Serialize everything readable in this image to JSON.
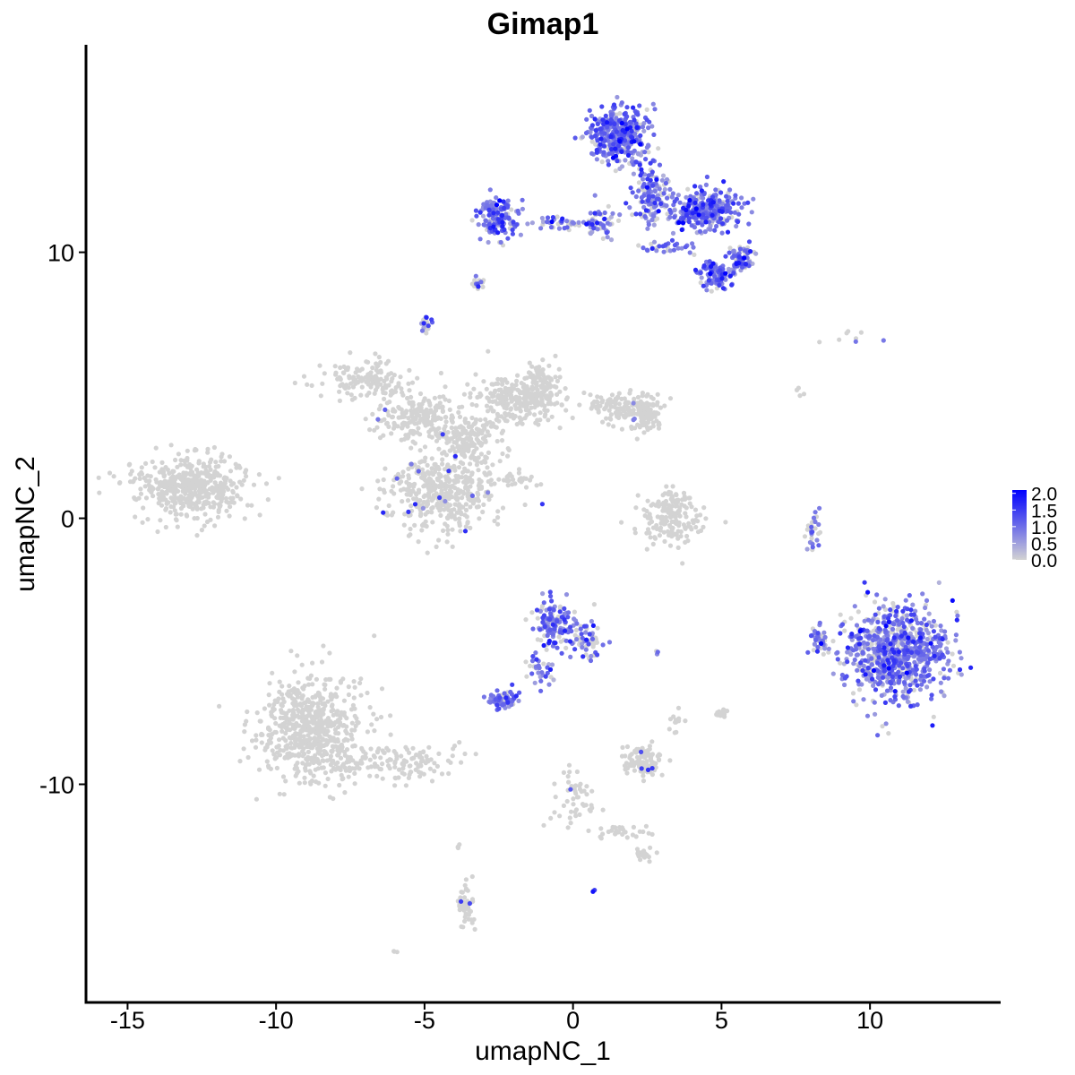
{
  "chart_data": {
    "type": "scatter",
    "title": "Gimap1",
    "xlabel": "umapNC_1",
    "ylabel": "umapNC_2",
    "xlim": [
      -16.4,
      14.4
    ],
    "ylim": [
      -18.2,
      17.8
    ],
    "xticks": [
      -15,
      -10,
      -5,
      0,
      5,
      10
    ],
    "xtick_labels": [
      "-15",
      "-10",
      "-5",
      "0",
      "5",
      "10"
    ],
    "yticks": [
      -10,
      0,
      10
    ],
    "ytick_labels": [
      "-10",
      "0",
      "10"
    ],
    "grid": false,
    "legend": {
      "position": "right",
      "type": "colorbar",
      "range": [
        0,
        2.1
      ],
      "ticks": [
        2.0,
        1.5,
        1.0,
        0.5,
        0.0
      ],
      "tick_labels": [
        "2.0",
        "1.5",
        "1.0",
        "0.5",
        "0.0"
      ],
      "low_color": "#d3d3d3",
      "high_color": "#0000ff"
    },
    "clusters": [
      {
        "cx": -13.0,
        "cy": 1.2,
        "sx": 1.3,
        "sy": 0.75,
        "n": 480,
        "expr": 0
      },
      {
        "cx": -8.8,
        "cy": -7.9,
        "sx": 1.2,
        "sy": 1.3,
        "n": 620,
        "expr": 0
      },
      {
        "cx": -6.0,
        "cy": -9.2,
        "sx": 1.5,
        "sy": 0.55,
        "n": 140,
        "expr": 0
      },
      {
        "cx": -7.0,
        "cy": 5.2,
        "sx": 1.0,
        "sy": 0.5,
        "n": 140,
        "expr": 0
      },
      {
        "cx": -5.2,
        "cy": 3.8,
        "sx": 0.9,
        "sy": 0.6,
        "n": 180,
        "expr": 0.03
      },
      {
        "cx": -4.4,
        "cy": 1.0,
        "sx": 1.2,
        "sy": 1.0,
        "n": 440,
        "expr": 0.03
      },
      {
        "cx": -3.6,
        "cy": 3.0,
        "sx": 0.7,
        "sy": 0.6,
        "n": 160,
        "expr": 0
      },
      {
        "cx": -2.0,
        "cy": 4.4,
        "sx": 0.9,
        "sy": 0.7,
        "n": 210,
        "expr": 0
      },
      {
        "cx": -1.0,
        "cy": 5.0,
        "sx": 0.5,
        "sy": 0.7,
        "n": 120,
        "expr": 0
      },
      {
        "cx": 1.6,
        "cy": 4.2,
        "sx": 0.9,
        "sy": 0.35,
        "n": 130,
        "expr": 0
      },
      {
        "cx": 2.4,
        "cy": 3.9,
        "sx": 0.4,
        "sy": 0.4,
        "n": 90,
        "expr": 0.03
      },
      {
        "cx": -1.9,
        "cy": 1.4,
        "sx": 0.55,
        "sy": 0.25,
        "n": 30,
        "expr": 0
      },
      {
        "cx": 3.2,
        "cy": -0.1,
        "sx": 0.8,
        "sy": 0.6,
        "n": 140,
        "expr": 0
      },
      {
        "cx": 3.3,
        "cy": 0.7,
        "sx": 0.25,
        "sy": 0.4,
        "n": 30,
        "expr": 0
      },
      {
        "cx": -4.9,
        "cy": 7.3,
        "sx": 0.12,
        "sy": 0.15,
        "n": 25,
        "expr": 0.45
      },
      {
        "cx": -3.2,
        "cy": 8.8,
        "sx": 0.15,
        "sy": 0.2,
        "n": 14,
        "expr": 0.5
      },
      {
        "cx": -2.6,
        "cy": 11.3,
        "sx": 0.45,
        "sy": 0.55,
        "n": 150,
        "expr": 0.85
      },
      {
        "cx": -0.5,
        "cy": 11.1,
        "sx": 0.7,
        "sy": 0.15,
        "n": 40,
        "expr": 0.75
      },
      {
        "cx": 0.9,
        "cy": 11.2,
        "sx": 0.4,
        "sy": 0.4,
        "n": 50,
        "expr": 0.75
      },
      {
        "cx": 1.5,
        "cy": 14.4,
        "sx": 0.65,
        "sy": 0.65,
        "n": 380,
        "expr": 0.85
      },
      {
        "cx": 2.6,
        "cy": 12.3,
        "sx": 0.45,
        "sy": 0.8,
        "n": 130,
        "expr": 0.8
      },
      {
        "cx": 4.4,
        "cy": 11.6,
        "sx": 0.85,
        "sy": 0.55,
        "n": 310,
        "expr": 0.85
      },
      {
        "cx": 4.8,
        "cy": 9.2,
        "sx": 0.4,
        "sy": 0.35,
        "n": 120,
        "expr": 0.85
      },
      {
        "cx": 5.7,
        "cy": 9.8,
        "sx": 0.3,
        "sy": 0.3,
        "n": 70,
        "expr": 0.8
      },
      {
        "cx": 3.2,
        "cy": 10.2,
        "sx": 0.6,
        "sy": 0.15,
        "n": 30,
        "expr": 0.75
      },
      {
        "cx": 10.9,
        "cy": -5.1,
        "sx": 1.1,
        "sy": 1.2,
        "n": 760,
        "expr": 0.8
      },
      {
        "cx": 8.3,
        "cy": -4.6,
        "sx": 0.2,
        "sy": 0.35,
        "n": 40,
        "expr": 0.7
      },
      {
        "cx": 8.1,
        "cy": -0.4,
        "sx": 0.15,
        "sy": 0.45,
        "n": 30,
        "expr": 0.6
      },
      {
        "cx": -0.6,
        "cy": -4.0,
        "sx": 0.45,
        "sy": 0.6,
        "n": 150,
        "expr": 0.75
      },
      {
        "cx": 0.5,
        "cy": -4.6,
        "sx": 0.35,
        "sy": 0.5,
        "n": 50,
        "expr": 0.4
      },
      {
        "cx": -1.1,
        "cy": -5.8,
        "sx": 0.3,
        "sy": 0.5,
        "n": 30,
        "expr": 0.75
      },
      {
        "cx": -2.4,
        "cy": -6.8,
        "sx": 0.35,
        "sy": 0.25,
        "n": 60,
        "expr": 0.8
      },
      {
        "cx": 2.4,
        "cy": -9.1,
        "sx": 0.5,
        "sy": 0.35,
        "n": 110,
        "expr": 0.04
      },
      {
        "cx": 0.0,
        "cy": -10.6,
        "sx": 0.5,
        "sy": 0.8,
        "n": 50,
        "expr": 0.02
      },
      {
        "cx": 1.5,
        "cy": -11.8,
        "sx": 0.6,
        "sy": 0.2,
        "n": 30,
        "expr": 0
      },
      {
        "cx": 2.4,
        "cy": -12.6,
        "sx": 0.25,
        "sy": 0.15,
        "n": 25,
        "expr": 0
      },
      {
        "cx": -3.6,
        "cy": -14.6,
        "sx": 0.18,
        "sy": 0.6,
        "n": 55,
        "expr": 0.02
      },
      {
        "cx": 5.0,
        "cy": -7.3,
        "sx": 0.15,
        "sy": 0.12,
        "n": 20,
        "expr": 0
      },
      {
        "cx": 3.4,
        "cy": -7.7,
        "sx": 0.2,
        "sy": 0.25,
        "n": 12,
        "expr": 0
      },
      {
        "cx": 9.3,
        "cy": 6.8,
        "sx": 0.5,
        "sy": 0.2,
        "n": 8,
        "expr": 0.3
      },
      {
        "cx": 7.6,
        "cy": 4.7,
        "sx": 0.1,
        "sy": 0.15,
        "n": 4,
        "expr": 0
      },
      {
        "cx": 2.8,
        "cy": -5.0,
        "sx": 0.05,
        "sy": 0.05,
        "n": 3,
        "expr": 0.8
      },
      {
        "cx": 0.7,
        "cy": -14.0,
        "sx": 0.05,
        "sy": 0.05,
        "n": 3,
        "expr": 0.6
      },
      {
        "cx": -6.0,
        "cy": -16.3,
        "sx": 0.05,
        "sy": 0.05,
        "n": 3,
        "expr": 0
      },
      {
        "cx": -3.9,
        "cy": -12.3,
        "sx": 0.05,
        "sy": 0.15,
        "n": 4,
        "expr": 0
      }
    ]
  }
}
